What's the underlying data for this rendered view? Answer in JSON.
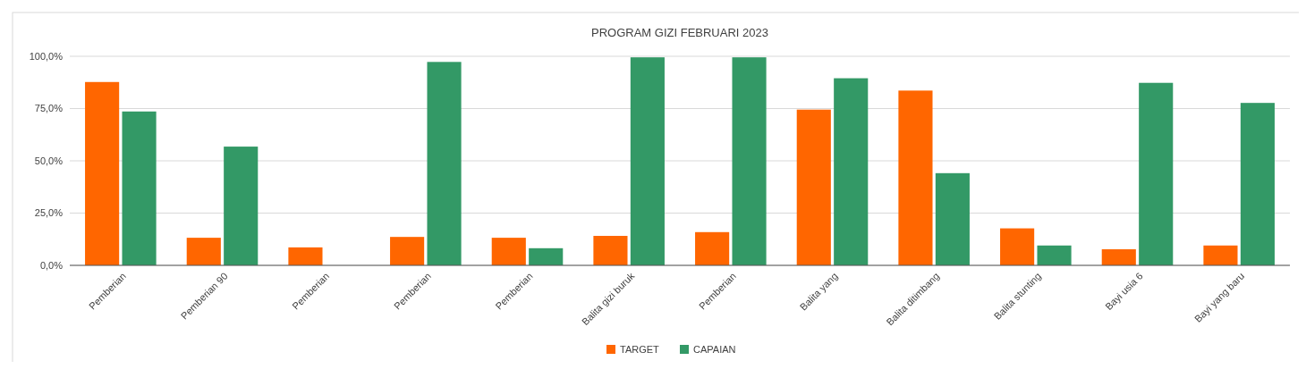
{
  "chart_data": {
    "type": "bar",
    "title": "PROGRAM GIZI FEBRUARI 2023",
    "categories": [
      "Pemberian",
      "Pemberian 90",
      "Pemberian",
      "Pemberian",
      "Pemberian",
      "Balita gizi buruk",
      "Pemberian",
      "Balita yang",
      "Balita ditimbang",
      "Balita stunting",
      "Bayi usia 6",
      "Bayi yang baru"
    ],
    "series": [
      {
        "name": "TARGET",
        "color": "#ff6600",
        "values": [
          87.7,
          13.2,
          8.6,
          13.6,
          13.2,
          14.1,
          15.9,
          74.5,
          83.6,
          17.7,
          7.7,
          9.5
        ]
      },
      {
        "name": "CAPAIAN",
        "color": "#339966",
        "values": [
          73.6,
          56.8,
          0,
          97.3,
          8.2,
          99.5,
          99.5,
          89.5,
          44.1,
          9.5,
          87.3,
          77.7
        ]
      }
    ],
    "ylim": [
      0,
      100
    ],
    "yticks": [
      {
        "value": 0,
        "label": "0,0%"
      },
      {
        "value": 25,
        "label": "25,0%"
      },
      {
        "value": 50,
        "label": "50,0%"
      },
      {
        "value": 75,
        "label": "75,0%"
      },
      {
        "value": 100,
        "label": "100,0%"
      }
    ],
    "grid": "y",
    "legend": "bottom"
  }
}
